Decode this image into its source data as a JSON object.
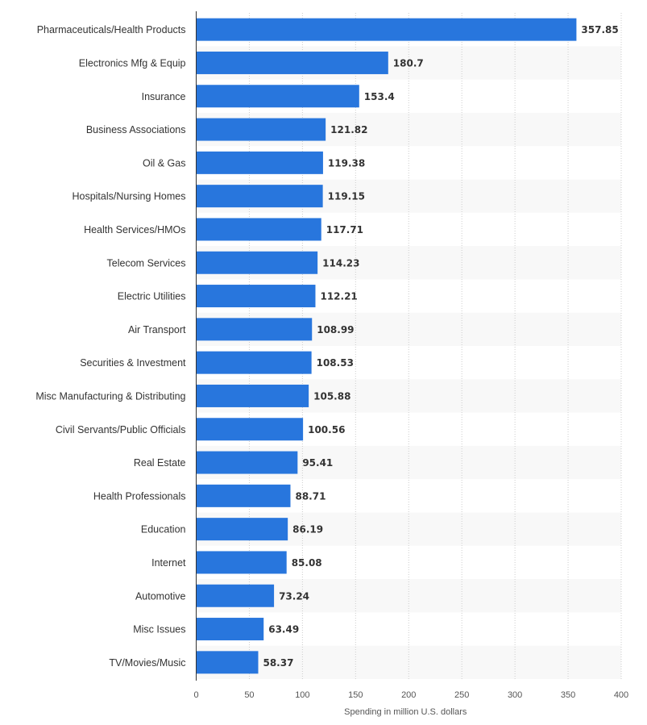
{
  "chart_data": {
    "type": "bar",
    "orientation": "horizontal",
    "title": "",
    "xlabel": "Spending in million U.S. dollars",
    "ylabel": "",
    "xlim": [
      0,
      400
    ],
    "ticks": [
      0,
      50,
      100,
      150,
      200,
      250,
      300,
      350,
      400
    ],
    "tick_labels": [
      "0",
      "50",
      "100",
      "150",
      "200",
      "250",
      "300",
      "350",
      "400"
    ],
    "grid": true,
    "categories": [
      "Pharmaceuticals/Health Products",
      "Electronics Mfg & Equip",
      "Insurance",
      "Business Associations",
      "Oil & Gas",
      "Hospitals/Nursing Homes",
      "Health Services/HMOs",
      "Telecom Services",
      "Electric Utilities",
      "Air Transport",
      "Securities & Investment",
      "Misc Manufacturing & Distributing",
      "Civil Servants/Public Officials",
      "Real Estate",
      "Health Professionals",
      "Education",
      "Internet",
      "Automotive",
      "Misc Issues",
      "TV/Movies/Music"
    ],
    "values": [
      357.85,
      180.7,
      153.4,
      121.82,
      119.38,
      119.15,
      117.71,
      114.23,
      112.21,
      108.99,
      108.53,
      105.88,
      100.56,
      95.41,
      88.71,
      86.19,
      85.08,
      73.24,
      63.49,
      58.37
    ],
    "value_labels": [
      "357.85",
      "180.7",
      "153.4",
      "121.82",
      "119.38",
      "119.15",
      "117.71",
      "114.23",
      "112.21",
      "108.99",
      "108.53",
      "105.88",
      "100.56",
      "95.41",
      "88.71",
      "86.19",
      "85.08",
      "73.24",
      "63.49",
      "58.37"
    ],
    "bar_color": "#2876dd",
    "stripe_color": "#f8f8f8",
    "grid_color": "#cccccc",
    "axis_color": "#333333"
  }
}
